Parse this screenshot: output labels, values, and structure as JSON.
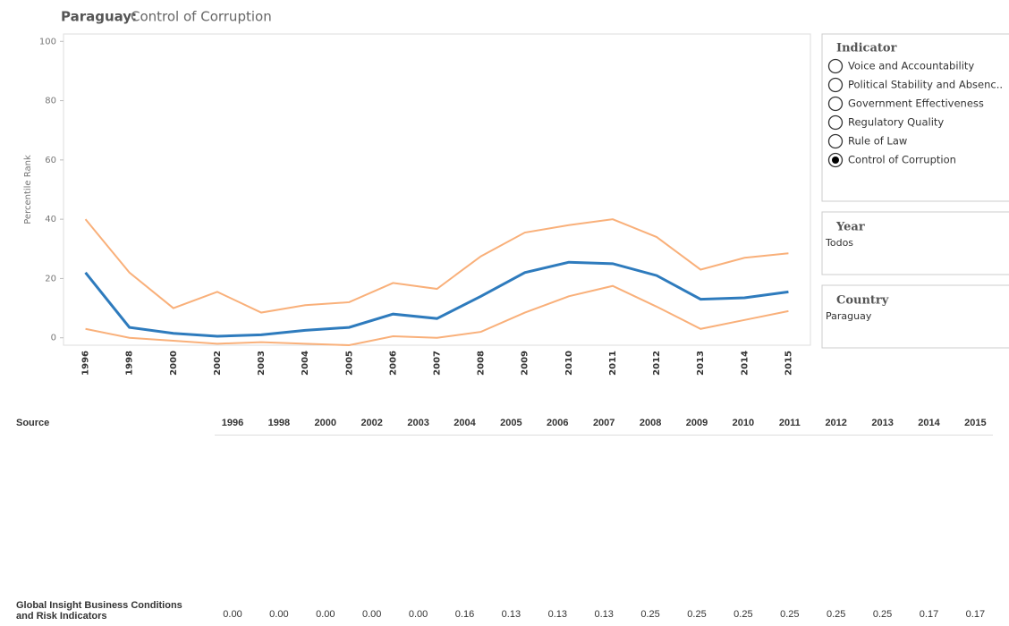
{
  "chart_data": {
    "type": "line",
    "title": {
      "country": "Paraguay:",
      "indicator": "Control of Corruption"
    },
    "y_label": "Percentile Rank",
    "categories": [
      "1996",
      "1998",
      "2000",
      "2002",
      "2003",
      "2004",
      "2005",
      "2006",
      "2007",
      "2008",
      "2009",
      "2010",
      "2011",
      "2012",
      "2013",
      "2014",
      "2015"
    ],
    "series": [
      {
        "color": "#f9b07a",
        "values": [
          40,
          22,
          10,
          15.5,
          8.5,
          11,
          12,
          18.5,
          16.5,
          27.5,
          35.5,
          38,
          40,
          34,
          23,
          27,
          28.5
        ]
      },
      {
        "color": "#f9b07a",
        "values": [
          3,
          0,
          -1,
          -2,
          -1.5,
          -2,
          -2.5,
          0.5,
          0,
          2,
          8.5,
          14,
          17.5,
          10.5,
          3,
          6,
          9
        ]
      },
      {
        "color": "#2e7bbd",
        "values": [
          22,
          3.5,
          1.5,
          0.5,
          1,
          2.5,
          3.5,
          8,
          6.5,
          14,
          22,
          25.5,
          25,
          21,
          13,
          13.5,
          15.5
        ]
      }
    ],
    "ylim": [
      -2.5,
      102.5
    ],
    "yticks": [
      0,
      20,
      40,
      60,
      80,
      100
    ],
    "grid": false
  },
  "filters": {
    "indicator": {
      "title": "Indicator",
      "options": [
        "Voice and Accountability",
        "Political Stability and Absenc..",
        "Government Effectiveness",
        "Regulatory Quality",
        "Rule of Law",
        "Control of Corruption"
      ],
      "selected": 5
    },
    "year": {
      "title": "Year",
      "value": "Todos"
    },
    "country": {
      "title": "Country",
      "value": "Paraguay"
    }
  },
  "table": {
    "header": [
      "Source",
      "1996",
      "1998",
      "2000",
      "2002",
      "2003",
      "2004",
      "2005",
      "2006",
      "2007",
      "2008",
      "2009",
      "2010",
      "2011",
      "2012",
      "2013",
      "2014",
      "2015"
    ],
    "rows": [
      [
        "Global Insight Business Conditions and Risk Indicators",
        "0.00",
        "0.00",
        "0.00",
        "0.00",
        "0.00",
        "0.16",
        "0.13",
        "0.13",
        "0.13",
        "0.25",
        "0.25",
        "0.25",
        "0.25",
        "0.25",
        "0.25",
        "0.17",
        "0.17"
      ]
    ]
  }
}
